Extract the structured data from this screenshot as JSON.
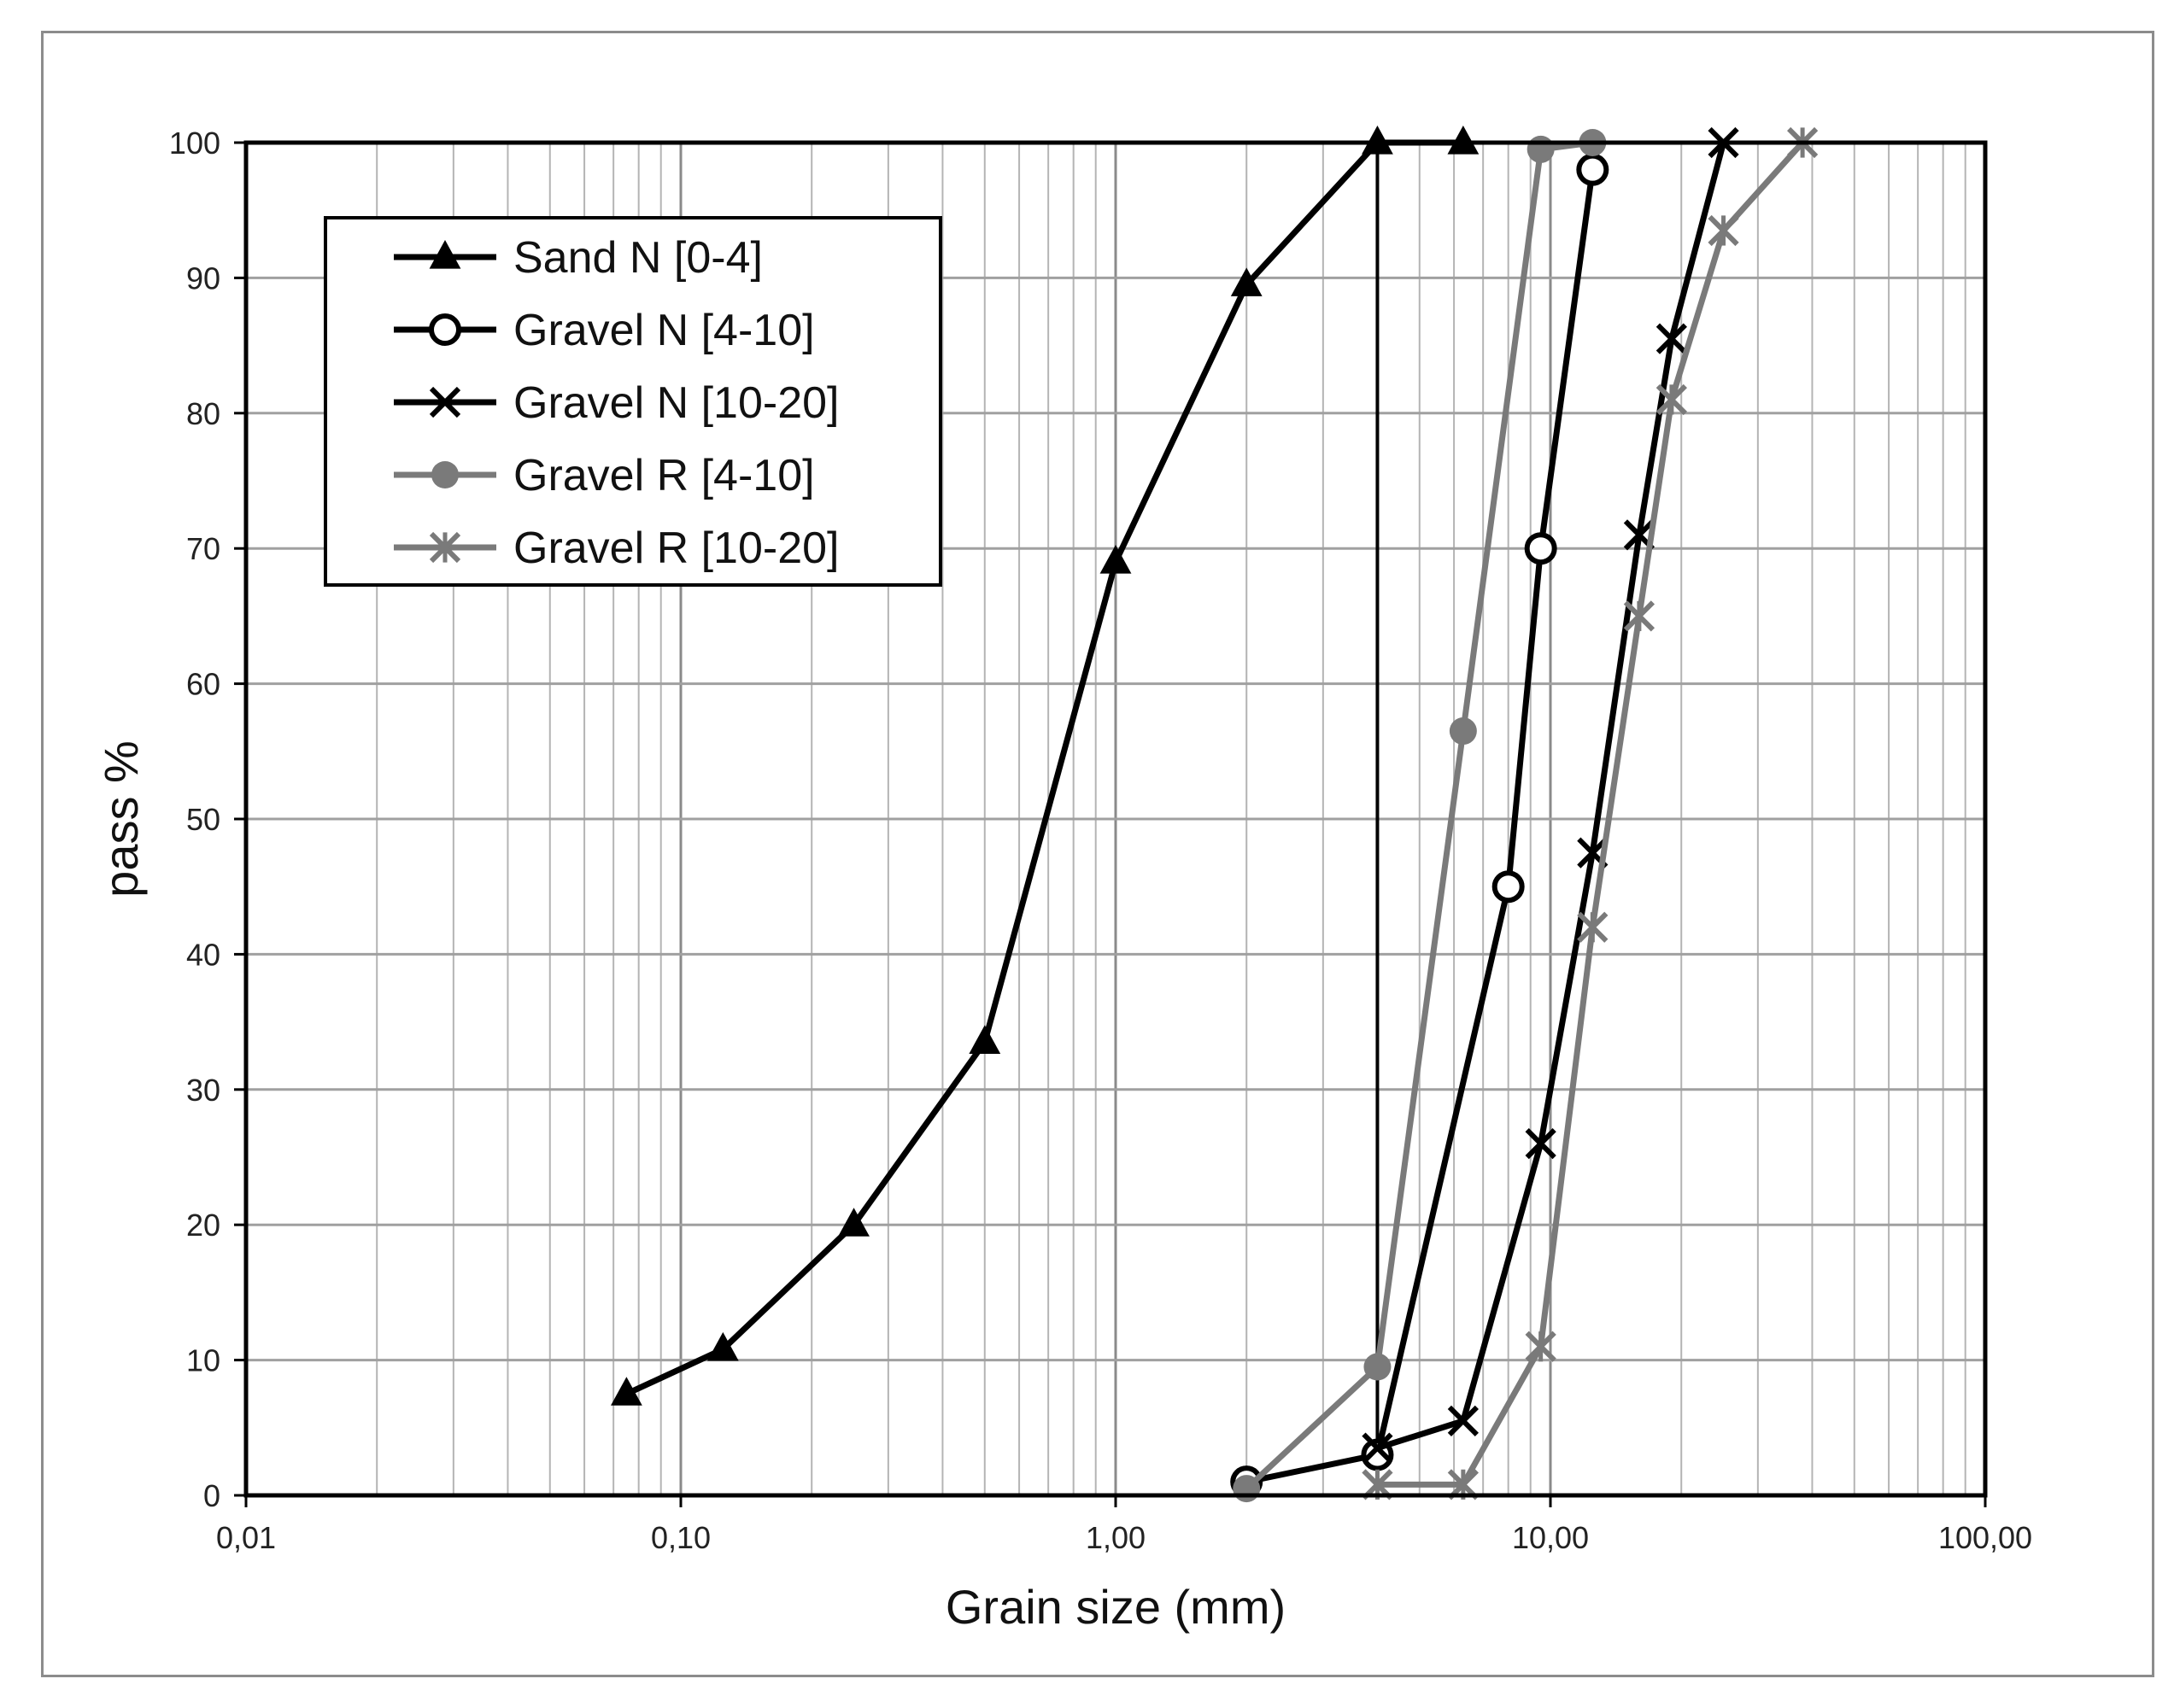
{
  "chart_data": {
    "type": "line",
    "xscale": "log",
    "xlim": [
      0.01,
      100
    ],
    "ylim": [
      0,
      100
    ],
    "grid": true,
    "legend_position": "top-left",
    "xlabel": "Grain size (mm)",
    "ylabel": "pass %",
    "x_tick_labels": [
      "0,01",
      "0,10",
      "1,00",
      "10,00",
      "100,00"
    ],
    "x_tick_values": [
      0.01,
      0.1,
      1,
      10,
      100
    ],
    "y_tick_labels": [
      "0",
      "10",
      "20",
      "30",
      "40",
      "50",
      "60",
      "70",
      "80",
      "90",
      "100"
    ],
    "y_tick_values": [
      0,
      10,
      20,
      30,
      40,
      50,
      60,
      70,
      80,
      90,
      100
    ],
    "reference_line_x": 4,
    "series": [
      {
        "name": "Sand N [0-4]",
        "color": "#000000",
        "marker": "triangle",
        "x": [
          0.075,
          0.125,
          0.25,
          0.5,
          1,
          2,
          4,
          6.3
        ],
        "y": [
          7.5,
          10.8,
          20,
          33.5,
          69,
          89.5,
          100,
          100
        ]
      },
      {
        "name": "Gravel N [4-10]",
        "color": "#000000",
        "marker": "circle-open",
        "x": [
          2,
          4,
          8,
          9.5,
          12.5
        ],
        "y": [
          1,
          3,
          45,
          70,
          98
        ]
      },
      {
        "name": "Gravel N [10-20]",
        "color": "#000000",
        "marker": "x",
        "x": [
          4,
          6.3,
          9.5,
          12.5,
          16,
          19,
          25
        ],
        "y": [
          3.5,
          5.5,
          26,
          47.5,
          71,
          85.5,
          100
        ]
      },
      {
        "name": "Gravel R [4-10]",
        "color": "#7a7a7a",
        "marker": "circle-filled",
        "x": [
          2,
          4,
          6.3,
          9.5,
          12.5
        ],
        "y": [
          0.5,
          9.5,
          56.5,
          99.5,
          100
        ]
      },
      {
        "name": "Gravel R [10-20]",
        "color": "#7a7a7a",
        "marker": "star",
        "x": [
          4,
          6.3,
          9.5,
          12.5,
          16,
          19,
          25,
          38
        ],
        "y": [
          0.8,
          0.8,
          11,
          42,
          65,
          81,
          93.5,
          100
        ]
      }
    ]
  }
}
